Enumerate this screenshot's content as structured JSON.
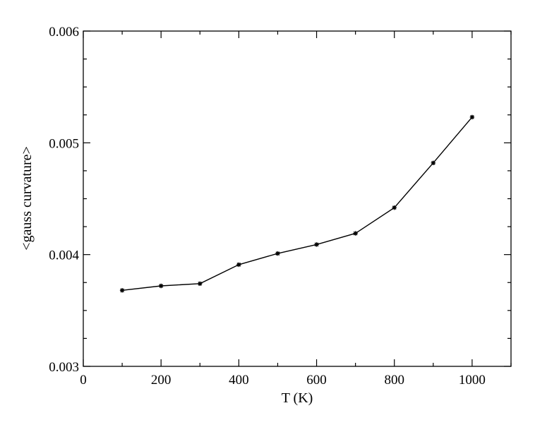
{
  "chart_data": {
    "type": "line",
    "title": "",
    "xlabel": "T (K)",
    "ylabel": "<gauss curvature>",
    "xlim": [
      0,
      1100
    ],
    "ylim": [
      0.003,
      0.006
    ],
    "grid": false,
    "x_ticks": [
      0,
      200,
      400,
      600,
      800,
      1000
    ],
    "x_tick_labels": [
      "0",
      "200",
      "400",
      "600",
      "800",
      "1000"
    ],
    "y_ticks": [
      0.003,
      0.004,
      0.005,
      0.006
    ],
    "y_tick_labels": [
      "0.003",
      "0.004",
      "0.005",
      "0.006"
    ],
    "series": [
      {
        "x": [
          100,
          200,
          300,
          400,
          500,
          600,
          700,
          800,
          900,
          1000
        ],
        "y": [
          0.00368,
          0.00372,
          0.00374,
          0.00391,
          0.00401,
          0.00409,
          0.00419,
          0.00442,
          0.00482,
          0.00523
        ],
        "color": "#000000",
        "marker": "star"
      }
    ]
  }
}
